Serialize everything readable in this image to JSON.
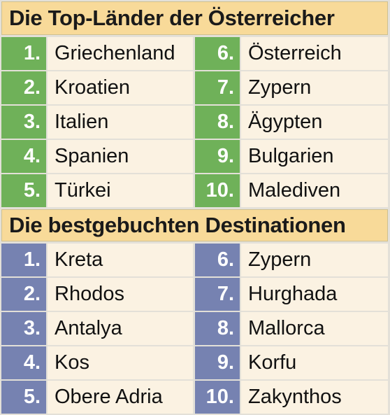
{
  "colors": {
    "header_bg": "#f8da99",
    "green_number_bg": "#6fb159",
    "blue_number_bg": "#7682b1",
    "name_cell_bg": "#fbf2e2"
  },
  "section1": {
    "title": "Die Top-Länder der Österreicher",
    "left": [
      {
        "num": "1.",
        "name": "Griechenland"
      },
      {
        "num": "2.",
        "name": "Kroatien"
      },
      {
        "num": "3.",
        "name": "Italien"
      },
      {
        "num": "4.",
        "name": "Spanien"
      },
      {
        "num": "5.",
        "name": "Türkei"
      }
    ],
    "right": [
      {
        "num": "6.",
        "name": "Österreich"
      },
      {
        "num": "7.",
        "name": "Zypern"
      },
      {
        "num": "8.",
        "name": "Ägypten"
      },
      {
        "num": "9.",
        "name": "Bulgarien"
      },
      {
        "num": "10.",
        "name": "Malediven"
      }
    ]
  },
  "section2": {
    "title": "Die bestgebuchten Destinationen",
    "left": [
      {
        "num": "1.",
        "name": "Kreta"
      },
      {
        "num": "2.",
        "name": "Rhodos"
      },
      {
        "num": "3.",
        "name": "Antalya"
      },
      {
        "num": "4.",
        "name": "Kos"
      },
      {
        "num": "5.",
        "name": "Obere Adria"
      }
    ],
    "right": [
      {
        "num": "6.",
        "name": "Zypern"
      },
      {
        "num": "7.",
        "name": "Hurghada"
      },
      {
        "num": "8.",
        "name": "Mallorca"
      },
      {
        "num": "9.",
        "name": "Korfu"
      },
      {
        "num": "10.",
        "name": "Zakynthos"
      }
    ]
  }
}
